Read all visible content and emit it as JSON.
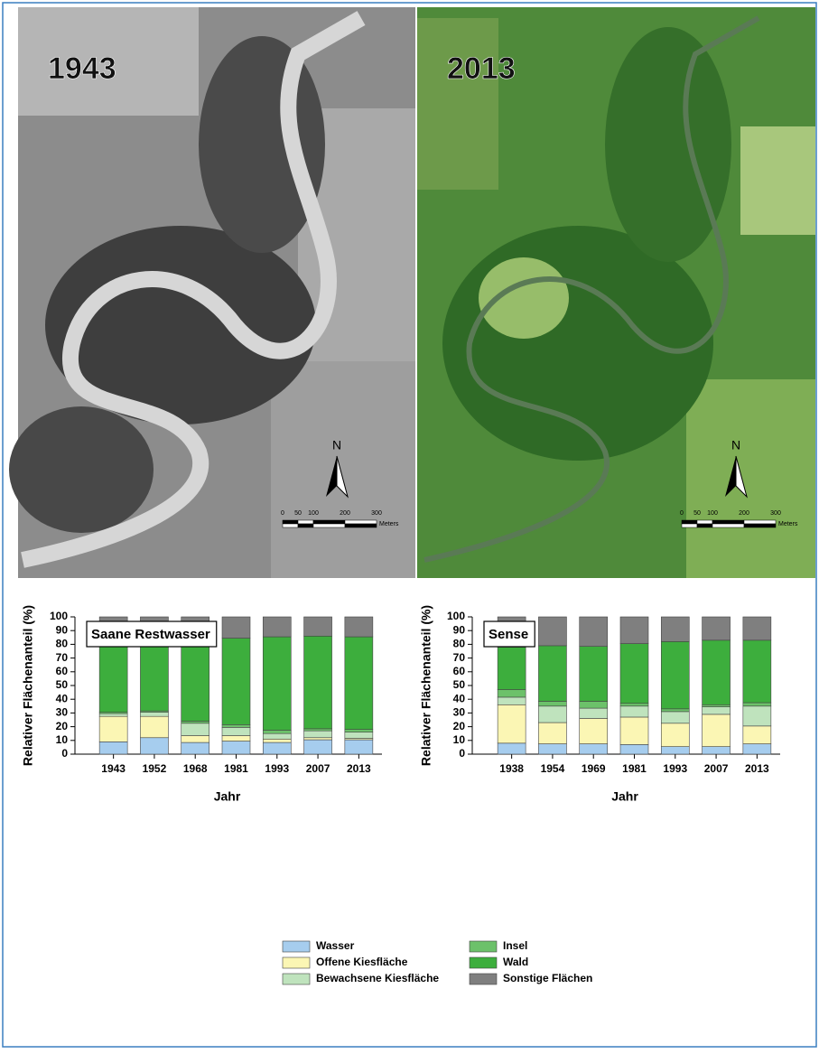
{
  "images": [
    {
      "year": "1943",
      "north": "N",
      "scale_labels": [
        "0",
        "50",
        "100",
        "200",
        "300"
      ],
      "scale_unit": "Meters"
    },
    {
      "year": "2013",
      "north": "N",
      "scale_labels": [
        "0",
        "50",
        "100",
        "200",
        "300"
      ],
      "scale_unit": "Meters"
    }
  ],
  "chart_data": [
    {
      "type": "bar",
      "stacked": true,
      "title": "Saane Restwasser",
      "x_label": "Jahr",
      "y_label": "Relativer Flächenanteil (%)",
      "categories": [
        "1943",
        "1952",
        "1968",
        "1981",
        "1993",
        "2007",
        "2013"
      ],
      "ylim": [
        0,
        100
      ],
      "yticks": [
        0,
        10,
        20,
        30,
        40,
        50,
        60,
        70,
        80,
        90,
        100
      ],
      "series": [
        {
          "name": "Wasser",
          "color": "#a6cdee",
          "values": [
            9,
            12,
            8.5,
            9.5,
            8.5,
            10.5,
            10.5
          ]
        },
        {
          "name": "Offene Kiesfläche",
          "color": "#fbf6b4",
          "values": [
            18.5,
            15.5,
            5,
            4,
            2.5,
            1.5,
            1
          ]
        },
        {
          "name": "Bewachsene Kiesfläche",
          "color": "#bfe3bd",
          "values": [
            2,
            3,
            9,
            6,
            4,
            5,
            4.5
          ]
        },
        {
          "name": "Insel",
          "color": "#6cc16a",
          "values": [
            1,
            1,
            1.5,
            2,
            2.5,
            1.5,
            2
          ]
        },
        {
          "name": "Wald",
          "color": "#3dae3d",
          "values": [
            54.5,
            52.5,
            61,
            63,
            68,
            67.5,
            67.5
          ]
        },
        {
          "name": "Sonstige Flächen",
          "color": "#7f7f7f",
          "values": [
            15,
            16,
            15,
            15.5,
            14.5,
            14,
            14.5
          ]
        }
      ]
    },
    {
      "type": "bar",
      "stacked": true,
      "title": "Sense",
      "x_label": "Jahr",
      "y_label": "Relativer Flächenanteil (%)",
      "categories": [
        "1938",
        "1954",
        "1969",
        "1981",
        "1993",
        "2007",
        "2013"
      ],
      "ylim": [
        0,
        100
      ],
      "yticks": [
        0,
        10,
        20,
        30,
        40,
        50,
        60,
        70,
        80,
        90,
        100
      ],
      "series": [
        {
          "color": "#a6cdee",
          "values": [
            8,
            7.5,
            7.5,
            7,
            5.5,
            5.5,
            7.5
          ]
        },
        {
          "color": "#fbf6b4",
          "values": [
            28,
            15.5,
            18.5,
            20,
            17,
            23.5,
            13
          ]
        },
        {
          "color": "#bfe3bd",
          "values": [
            5.5,
            12,
            7.5,
            8,
            8.5,
            5.5,
            14.5
          ]
        },
        {
          "color": "#6cc16a",
          "values": [
            5.5,
            3.5,
            5,
            2,
            2,
            1.5,
            2.5
          ]
        },
        {
          "color": "#3dae3d",
          "values": [
            31,
            40.5,
            40,
            43.5,
            49,
            47,
            45.5
          ]
        },
        {
          "color": "#7f7f7f",
          "values": [
            22,
            21,
            21.5,
            19.5,
            18,
            17,
            17
          ]
        }
      ]
    }
  ]
}
